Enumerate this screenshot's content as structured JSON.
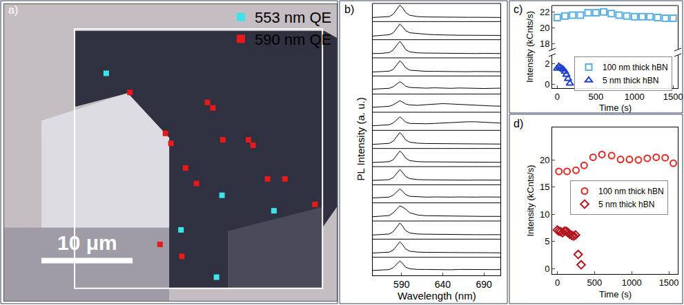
{
  "chart_data": [
    {
      "panel": "a)",
      "type": "scatter",
      "xlim": [
        0,
        36.5
      ],
      "ylim": [
        32.6,
        0
      ],
      "tick_labels": false,
      "legend": "upper right",
      "scale_bar": {
        "length": 10,
        "label": "10 μm"
      },
      "series": [
        {
          "name": "553 nm QE",
          "color": "#3de3e8",
          "marker": "square",
          "x": [
            11.2,
            23.9,
            29.6,
            19.4,
            23.3
          ],
          "values": [
            7.6,
            21.0,
            22.7,
            24.8,
            30.0
          ]
        },
        {
          "name": "590 nm QE",
          "color": "#e8191a",
          "marker": "square",
          "x": [
            13.8,
            22.3,
            22.9,
            17.7,
            24.0,
            26.8,
            27.3,
            18.3,
            19.9,
            21.1,
            28.9,
            30.8,
            34.1,
            17.1,
            19.5
          ],
          "values": [
            9.7,
            10.8,
            11.4,
            14.2,
            14.9,
            14.9,
            15.5,
            15.3,
            18.0,
            19.7,
            19.2,
            19.2,
            22.0,
            26.4,
            27.7
          ]
        }
      ]
    },
    {
      "panel": "b)",
      "type": "line",
      "x_label": "Wavelength (nm)",
      "y_label": "PL Intensity (a. u.)",
      "x": [
        555,
        565,
        575,
        580,
        585,
        588,
        591,
        595,
        600,
        610,
        620,
        630,
        640,
        650,
        660,
        670,
        680,
        690,
        700,
        710
      ],
      "xlim": [
        555,
        710
      ],
      "xticks": [
        590,
        640,
        690
      ],
      "ylim": [
        0,
        1.1
      ],
      "tick_labels": "x",
      "color": "#000000",
      "series": [
        {
          "values": [
            0.25,
            0.26,
            0.3,
            0.45,
            0.8,
            1.0,
            0.85,
            0.55,
            0.38,
            0.3,
            0.28,
            0.27,
            0.27,
            0.26,
            0.27,
            0.26,
            0.26,
            0.25,
            0.26,
            0.25
          ]
        },
        {
          "values": [
            0.22,
            0.25,
            0.3,
            0.42,
            0.75,
            0.95,
            0.8,
            0.55,
            0.42,
            0.36,
            0.33,
            0.3,
            0.28,
            0.28,
            0.27,
            0.27,
            0.26,
            0.26,
            0.25,
            0.26
          ]
        },
        {
          "values": [
            0.26,
            0.27,
            0.32,
            0.48,
            0.82,
            1.0,
            0.82,
            0.5,
            0.36,
            0.3,
            0.29,
            0.28,
            0.28,
            0.27,
            0.27,
            0.27,
            0.26,
            0.27,
            0.26,
            0.26
          ]
        },
        {
          "values": [
            0.24,
            0.25,
            0.29,
            0.4,
            0.7,
            0.92,
            0.78,
            0.5,
            0.35,
            0.3,
            0.28,
            0.28,
            0.27,
            0.28,
            0.27,
            0.26,
            0.27,
            0.26,
            0.26,
            0.26
          ]
        },
        {
          "values": [
            0.3,
            0.32,
            0.35,
            0.45,
            0.62,
            0.75,
            0.66,
            0.48,
            0.4,
            0.37,
            0.36,
            0.38,
            0.36,
            0.35,
            0.37,
            0.35,
            0.36,
            0.34,
            0.35,
            0.36
          ]
        },
        {
          "values": [
            0.3,
            0.33,
            0.36,
            0.45,
            0.6,
            0.7,
            0.62,
            0.5,
            0.44,
            0.42,
            0.46,
            0.5,
            0.52,
            0.5,
            0.47,
            0.44,
            0.42,
            0.4,
            0.38,
            0.37
          ]
        },
        {
          "values": [
            0.28,
            0.3,
            0.34,
            0.45,
            0.68,
            0.82,
            0.7,
            0.5,
            0.42,
            0.4,
            0.4,
            0.42,
            0.45,
            0.48,
            0.5,
            0.52,
            0.52,
            0.5,
            0.47,
            0.44
          ]
        },
        {
          "values": [
            0.25,
            0.27,
            0.31,
            0.45,
            0.78,
            0.97,
            0.8,
            0.52,
            0.38,
            0.32,
            0.3,
            0.3,
            0.29,
            0.29,
            0.28,
            0.28,
            0.28,
            0.27,
            0.28,
            0.27
          ]
        },
        {
          "values": [
            0.25,
            0.26,
            0.3,
            0.42,
            0.75,
            0.95,
            0.8,
            0.52,
            0.36,
            0.3,
            0.29,
            0.29,
            0.28,
            0.28,
            0.28,
            0.27,
            0.27,
            0.27,
            0.27,
            0.26
          ]
        },
        {
          "values": [
            0.26,
            0.27,
            0.31,
            0.44,
            0.74,
            0.92,
            0.76,
            0.5,
            0.37,
            0.31,
            0.3,
            0.29,
            0.3,
            0.29,
            0.28,
            0.28,
            0.29,
            0.28,
            0.28,
            0.28
          ]
        },
        {
          "values": [
            0.3,
            0.32,
            0.35,
            0.47,
            0.7,
            0.85,
            0.72,
            0.5,
            0.4,
            0.36,
            0.35,
            0.36,
            0.34,
            0.35,
            0.36,
            0.34,
            0.35,
            0.36,
            0.34,
            0.35
          ]
        },
        {
          "values": [
            0.26,
            0.28,
            0.33,
            0.5,
            0.78,
            0.92,
            0.85,
            0.72,
            0.5,
            0.36,
            0.32,
            0.31,
            0.3,
            0.3,
            0.29,
            0.29,
            0.29,
            0.28,
            0.28,
            0.28
          ]
        },
        {
          "values": [
            0.25,
            0.27,
            0.31,
            0.46,
            0.8,
            0.98,
            0.8,
            0.52,
            0.37,
            0.31,
            0.3,
            0.29,
            0.29,
            0.28,
            0.28,
            0.28,
            0.27,
            0.27,
            0.27,
            0.27
          ]
        },
        {
          "values": [
            0.26,
            0.27,
            0.31,
            0.44,
            0.76,
            0.94,
            0.78,
            0.5,
            0.37,
            0.31,
            0.3,
            0.29,
            0.29,
            0.29,
            0.28,
            0.28,
            0.28,
            0.27,
            0.28,
            0.27
          ]
        },
        {
          "values": [
            0.3,
            0.31,
            0.35,
            0.47,
            0.72,
            0.88,
            0.74,
            0.5,
            0.4,
            0.36,
            0.36,
            0.35,
            0.37,
            0.34,
            0.36,
            0.35,
            0.34,
            0.36,
            0.35,
            0.35
          ]
        }
      ]
    },
    {
      "panel": "c)",
      "type": "scatter",
      "x_label": "Time (s)",
      "y_label": "Intensity (kCnts/s)",
      "xlim": [
        -65,
        1560
      ],
      "xticks": [
        0,
        500,
        1000,
        1500
      ],
      "y_segments": [
        {
          "ylim": [
            17.3,
            22.8
          ],
          "yticks": [
            18,
            20,
            22
          ]
        },
        {
          "ylim": [
            -0.4,
            2.8
          ],
          "yticks": [
            0,
            2
          ]
        }
      ],
      "legend": "lower right",
      "series": [
        {
          "name": "100 nm thick hBN",
          "color": "#5aaee6",
          "marker": "square-open",
          "x": [
            0,
            100,
            200,
            300,
            400,
            500,
            600,
            700,
            800,
            900,
            1000,
            1100,
            1200,
            1300,
            1400,
            1500
          ],
          "values": [
            21.3,
            21.5,
            21.6,
            21.6,
            21.9,
            21.9,
            22.0,
            21.8,
            21.6,
            21.5,
            21.4,
            21.4,
            21.4,
            21.3,
            21.2,
            21.2
          ]
        },
        {
          "name": "5 nm thick hBN",
          "color": "#1f3fcf",
          "marker": "triangle-up-open",
          "x": [
            0,
            20,
            40,
            60,
            80,
            100,
            120,
            140,
            165
          ],
          "values": [
            1.5,
            1.7,
            1.6,
            1.5,
            1.4,
            1.2,
            0.9,
            0.5,
            0.05
          ]
        }
      ]
    },
    {
      "panel": "d)",
      "type": "scatter",
      "x_label": "Time (s)",
      "y_label": "Intensity (kCnts/s)",
      "xlim": [
        -70,
        1620
      ],
      "xticks": [
        0,
        500,
        1000,
        1500
      ],
      "ylim": [
        -1,
        26
      ],
      "yticks": [
        0,
        5,
        10,
        15,
        20
      ],
      "legend": "center right",
      "series": [
        {
          "name": "100 nm thick hBN",
          "color": "#e8231e",
          "marker": "circle-open",
          "x": [
            20,
            130,
            250,
            360,
            480,
            600,
            730,
            850,
            970,
            1090,
            1210,
            1330,
            1450,
            1560
          ],
          "values": [
            17.9,
            17.9,
            18.1,
            19.0,
            20.5,
            21.0,
            20.8,
            20.1,
            20.1,
            20.0,
            20.3,
            20.5,
            20.4,
            19.4
          ]
        },
        {
          "name": "5 nm thick hBN",
          "color": "#b5121b",
          "marker": "diamond-open",
          "x": [
            0,
            20,
            45,
            70,
            95,
            120,
            145,
            170,
            195,
            220,
            245,
            280,
            320
          ],
          "values": [
            7.1,
            6.9,
            6.8,
            6.6,
            6.9,
            6.9,
            6.6,
            6.3,
            6.1,
            6.0,
            6.2,
            2.6,
            0.7
          ]
        }
      ]
    }
  ]
}
